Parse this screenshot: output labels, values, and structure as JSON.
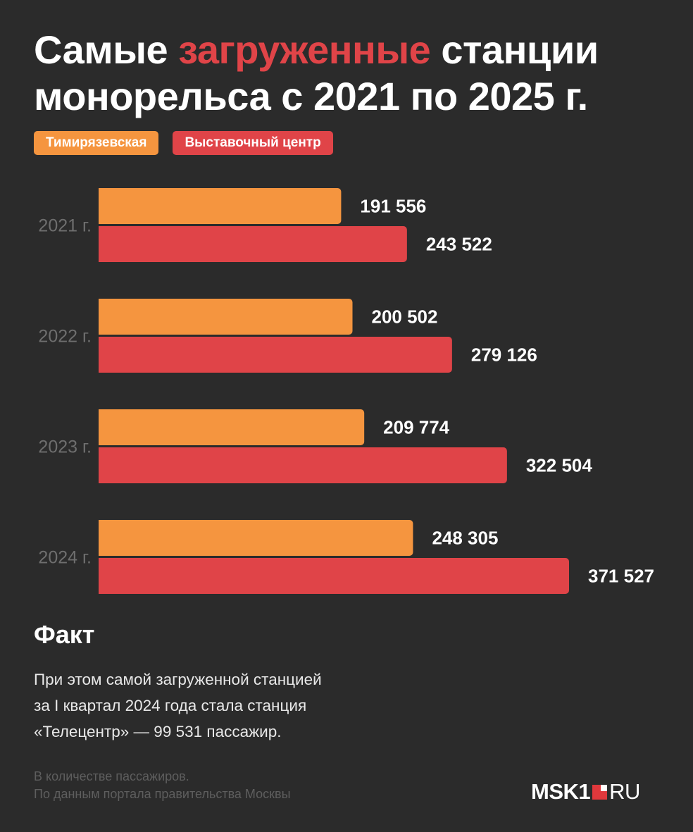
{
  "title": {
    "part1": "Самые ",
    "accent": "загруженные",
    "part2": " станции",
    "line2": "монорельса с 2021 по 2025 г."
  },
  "colors": {
    "background": "#2b2b2b",
    "series1": "#f5953f",
    "series2": "#e04448"
  },
  "chart_data": {
    "type": "bar",
    "orientation": "horizontal",
    "categories": [
      "2021 г.",
      "2022 г.",
      "2023 г.",
      "2024 г."
    ],
    "series": [
      {
        "name": "Тимирязевская",
        "values": [
          191556,
          200502,
          209774,
          248305
        ],
        "labels": [
          "191 556",
          "200 502",
          "209 774",
          "248 305"
        ],
        "color": "#f5953f"
      },
      {
        "name": "Выставочный центр",
        "values": [
          243522,
          279126,
          322504,
          371527
        ],
        "labels": [
          "243 522",
          "279 126",
          "322 504",
          "371 527"
        ],
        "color": "#e04448"
      }
    ],
    "xlim": [
      0,
      400000
    ],
    "grid": false,
    "legend": "top-left"
  },
  "fact": {
    "title": "Факт",
    "lines": [
      "При этом самой загруженной станцией",
      "за I квартал 2024 года стала станция",
      "«Телецентр» — 99 531 пассажир."
    ]
  },
  "source": {
    "line1": "В количестве пассажиров.",
    "line2": "По данным портала правительства Москвы"
  },
  "logo": {
    "bold": "MSK1",
    "light": "RU"
  }
}
